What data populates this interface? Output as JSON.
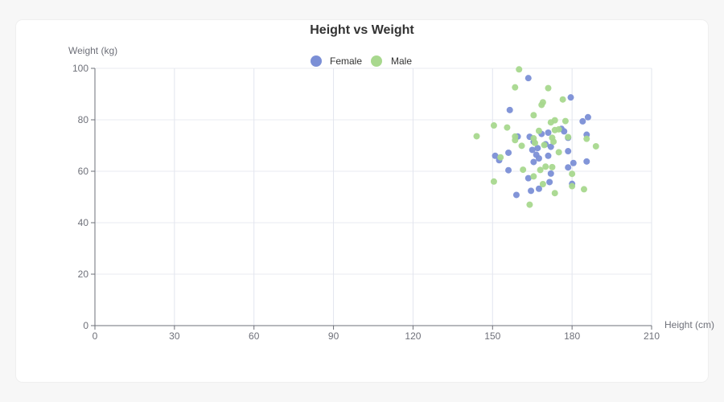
{
  "chart_data": {
    "type": "scatter",
    "title": "Height vs Weight",
    "xlabel": "Height (cm)",
    "ylabel": "Weight (kg)",
    "xlim": [
      0,
      210
    ],
    "ylim": [
      0,
      100
    ],
    "x_ticks": [
      0,
      30,
      60,
      90,
      120,
      150,
      180,
      210
    ],
    "y_ticks": [
      0,
      20,
      40,
      60,
      80,
      100
    ],
    "grid": true,
    "legend_position": "top-center",
    "series": [
      {
        "name": "Female",
        "color": "#7b8fd6",
        "points": [
          [
            163.5,
            96.2
          ],
          [
            179.5,
            88.7
          ],
          [
            156.5,
            83.8
          ],
          [
            186.0,
            81.0
          ],
          [
            184.0,
            79.4
          ],
          [
            176.0,
            76.5
          ],
          [
            177.0,
            75.5
          ],
          [
            171.0,
            75.0
          ],
          [
            168.5,
            74.5
          ],
          [
            185.5,
            74.2
          ],
          [
            159.5,
            73.5
          ],
          [
            164.0,
            73.4
          ],
          [
            178.5,
            73.0
          ],
          [
            165.5,
            71.5
          ],
          [
            170.0,
            70.5
          ],
          [
            172.0,
            69.5
          ],
          [
            167.0,
            69.0
          ],
          [
            165.0,
            68.3
          ],
          [
            178.5,
            67.8
          ],
          [
            156.0,
            67.2
          ],
          [
            166.5,
            66.4
          ],
          [
            171.0,
            66.0
          ],
          [
            151.0,
            66.0
          ],
          [
            167.5,
            65.0
          ],
          [
            152.5,
            64.3
          ],
          [
            165.5,
            63.6
          ],
          [
            185.5,
            63.8
          ],
          [
            180.5,
            63.2
          ],
          [
            178.5,
            61.5
          ],
          [
            156.0,
            60.4
          ],
          [
            172.0,
            59.1
          ],
          [
            163.5,
            57.3
          ],
          [
            171.5,
            55.8
          ],
          [
            180.0,
            55.1
          ],
          [
            167.5,
            53.2
          ],
          [
            164.5,
            52.4
          ],
          [
            159.0,
            50.8
          ]
        ]
      },
      {
        "name": "Male",
        "color": "#a8d88e",
        "points": [
          [
            160.0,
            99.6
          ],
          [
            158.5,
            92.6
          ],
          [
            171.0,
            92.3
          ],
          [
            176.5,
            87.9
          ],
          [
            169.0,
            86.8
          ],
          [
            168.5,
            85.8
          ],
          [
            165.5,
            81.8
          ],
          [
            173.5,
            79.8
          ],
          [
            177.5,
            79.5
          ],
          [
            172.0,
            79.0
          ],
          [
            150.5,
            77.8
          ],
          [
            155.5,
            77.0
          ],
          [
            167.5,
            75.7
          ],
          [
            173.5,
            76.0
          ],
          [
            175.0,
            76.3
          ],
          [
            144.0,
            73.6
          ],
          [
            158.5,
            73.5
          ],
          [
            172.5,
            73.0
          ],
          [
            165.5,
            72.8
          ],
          [
            178.5,
            73.3
          ],
          [
            185.5,
            72.6
          ],
          [
            158.5,
            72.1
          ],
          [
            173.0,
            71.5
          ],
          [
            166.0,
            71.0
          ],
          [
            169.5,
            70.2
          ],
          [
            161.0,
            69.9
          ],
          [
            189.0,
            69.7
          ],
          [
            175.0,
            67.4
          ],
          [
            153.0,
            65.4
          ],
          [
            170.0,
            61.8
          ],
          [
            172.5,
            61.6
          ],
          [
            161.5,
            60.6
          ],
          [
            168.0,
            60.5
          ],
          [
            180.0,
            59.0
          ],
          [
            165.5,
            58.0
          ],
          [
            150.5,
            56.0
          ],
          [
            169.0,
            55.0
          ],
          [
            180.0,
            54.2
          ],
          [
            184.5,
            53.0
          ],
          [
            173.5,
            51.5
          ],
          [
            164.0,
            47.0
          ]
        ]
      }
    ]
  }
}
